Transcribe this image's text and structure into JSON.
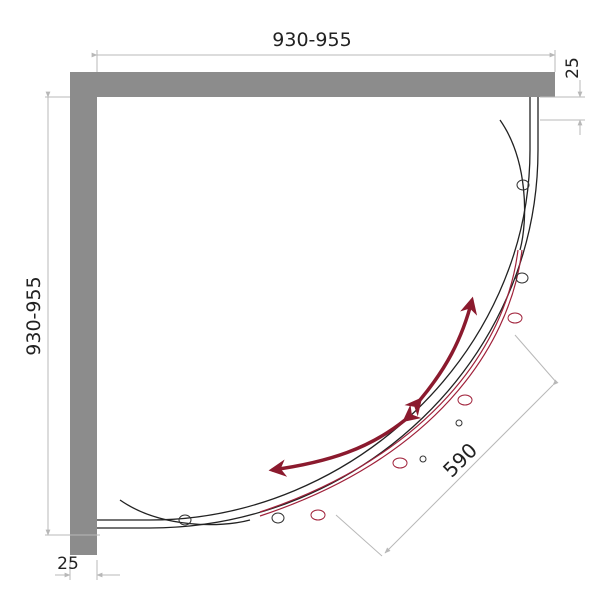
{
  "dimensions": {
    "top_width": "930-955",
    "left_height": "930-955",
    "top_wall_thickness": "25",
    "left_wall_thickness": "25",
    "door_arc_length": "590"
  },
  "colors": {
    "wall": "#8c8c8c",
    "frame": "#222222",
    "sliding_door": "#a0213a",
    "arrow": "#8b1a2e",
    "dimension_line": "#b8b8b8"
  }
}
